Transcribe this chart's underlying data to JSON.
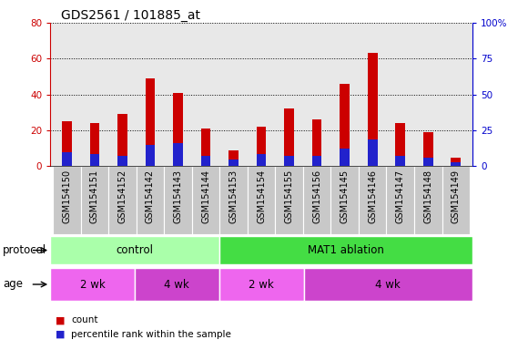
{
  "title": "GDS2561 / 101885_at",
  "samples": [
    "GSM154150",
    "GSM154151",
    "GSM154152",
    "GSM154142",
    "GSM154143",
    "GSM154144",
    "GSM154153",
    "GSM154154",
    "GSM154155",
    "GSM154156",
    "GSM154145",
    "GSM154146",
    "GSM154147",
    "GSM154148",
    "GSM154149"
  ],
  "count_values": [
    25,
    24,
    29,
    49,
    41,
    21,
    9,
    22,
    32,
    26,
    46,
    63,
    24,
    19,
    5
  ],
  "percentile_values": [
    8,
    7,
    6,
    12,
    13,
    6,
    4,
    7,
    6,
    6,
    10,
    15,
    6,
    5,
    2
  ],
  "left_ylim": [
    0,
    80
  ],
  "right_ylim": [
    0,
    100
  ],
  "left_yticks": [
    0,
    20,
    40,
    60,
    80
  ],
  "right_yticks": [
    0,
    25,
    50,
    75,
    100
  ],
  "right_yticklabels": [
    "0",
    "25",
    "50",
    "75",
    "100%"
  ],
  "bar_color_count": "#cc0000",
  "bar_color_percentile": "#2222cc",
  "bar_width": 0.35,
  "protocol_groups": [
    {
      "label": "control",
      "start": 0,
      "end": 5,
      "color": "#aaffaa"
    },
    {
      "label": "MAT1 ablation",
      "start": 6,
      "end": 14,
      "color": "#44dd44"
    }
  ],
  "age_groups": [
    {
      "label": "2 wk",
      "start": 0,
      "end": 2,
      "color": "#ee66ee"
    },
    {
      "label": "4 wk",
      "start": 3,
      "end": 5,
      "color": "#cc44cc"
    },
    {
      "label": "2 wk",
      "start": 6,
      "end": 8,
      "color": "#ee66ee"
    },
    {
      "label": "4 wk",
      "start": 9,
      "end": 14,
      "color": "#cc44cc"
    }
  ],
  "label_area_bg": "#c8c8c8",
  "plot_bg": "#e8e8e8",
  "grid_color": "black",
  "left_axis_color": "#cc0000",
  "right_axis_color": "#0000cc",
  "protocol_label": "protocol",
  "age_label": "age",
  "legend_count_label": "count",
  "legend_percentile_label": "percentile rank within the sample",
  "title_fontsize": 10,
  "tick_fontsize": 7.5,
  "sample_fontsize": 7,
  "label_fontsize": 8.5,
  "arrow_label_fontsize": 8.5
}
